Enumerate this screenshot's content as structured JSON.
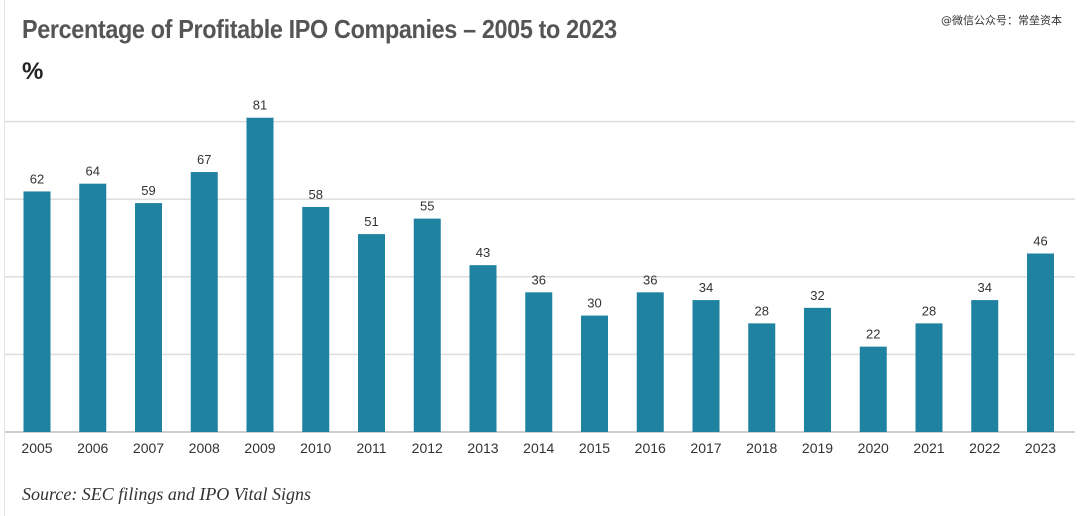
{
  "header": {
    "title": "Percentage of Profitable IPO Companies – 2005 to 2023",
    "unit": "%",
    "watermark": "@微信公众号：常垒资本"
  },
  "footer": {
    "source": "Source: SEC filings and IPO Vital Signs"
  },
  "colors": {
    "bar": "#1f82a0",
    "title": "#555555",
    "grid": "#dedede"
  },
  "chart_data": {
    "type": "bar",
    "title": "Percentage of Profitable IPO Companies – 2005 to 2023",
    "ylabel": "%",
    "xlabel": "",
    "categories": [
      "2005",
      "2006",
      "2007",
      "2008",
      "2009",
      "2010",
      "2011",
      "2012",
      "2013",
      "2014",
      "2015",
      "2016",
      "2017",
      "2018",
      "2019",
      "2020",
      "2021",
      "2022",
      "2023"
    ],
    "values": [
      62,
      64,
      59,
      67,
      81,
      58,
      51,
      55,
      43,
      36,
      30,
      36,
      34,
      28,
      32,
      22,
      28,
      34,
      46
    ],
    "ylim": [
      0,
      80
    ],
    "gridlines": [
      20,
      40,
      60,
      80
    ],
    "grid": true,
    "legend": "none",
    "data_labels": true
  }
}
